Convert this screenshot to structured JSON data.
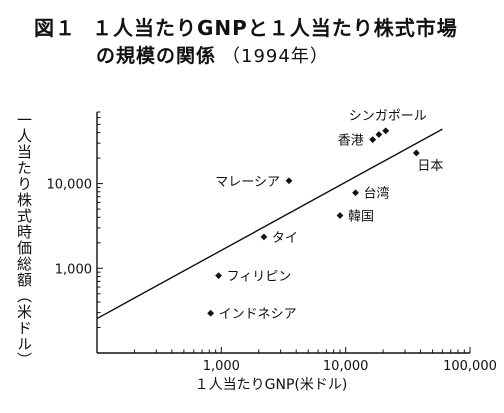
{
  "title": {
    "figure_number": "図１",
    "line1": "１人当たりGNPと１人当たり株式市場",
    "line2": "の規模の関係",
    "year": "（1994年）"
  },
  "chart_data": {
    "type": "scatter",
    "xscale": "log",
    "yscale": "log",
    "xlim": [
      100,
      100000
    ],
    "ylim": [
      100,
      70000
    ],
    "xticks": [
      1000,
      10000,
      100000
    ],
    "xtick_labels": [
      "1,000",
      "10,000",
      "100,000"
    ],
    "yticks": [
      1000,
      10000
    ],
    "ytick_labels": [
      "1,000",
      "10,000"
    ],
    "xlabel": "１人当たりGNP(米ドル)",
    "ylabel": "一人当たり株式時価総額（米ドル）",
    "grid": false,
    "points": [
      {
        "label": "シンガポール",
        "x": 21000,
        "y": 42000,
        "label_pos": "above"
      },
      {
        "label": "",
        "x": 18500,
        "y": 38000,
        "label_pos": "none"
      },
      {
        "label": "香港",
        "x": 16500,
        "y": 33000,
        "label_pos": "left"
      },
      {
        "label": "日本",
        "x": 37000,
        "y": 23000,
        "label_pos": "below-right"
      },
      {
        "label": "マレーシア",
        "x": 3500,
        "y": 10800,
        "label_pos": "left"
      },
      {
        "label": "台湾",
        "x": 12000,
        "y": 7800,
        "label_pos": "right"
      },
      {
        "label": "韓国",
        "x": 9000,
        "y": 4200,
        "label_pos": "right"
      },
      {
        "label": "タイ",
        "x": 2200,
        "y": 2350,
        "label_pos": "right"
      },
      {
        "label": "フィリピン",
        "x": 950,
        "y": 820,
        "label_pos": "right"
      },
      {
        "label": "インドネシア",
        "x": 820,
        "y": 295,
        "label_pos": "right"
      }
    ],
    "trend_line": {
      "x": [
        100,
        60000
      ],
      "y": [
        255,
        44000
      ]
    }
  }
}
